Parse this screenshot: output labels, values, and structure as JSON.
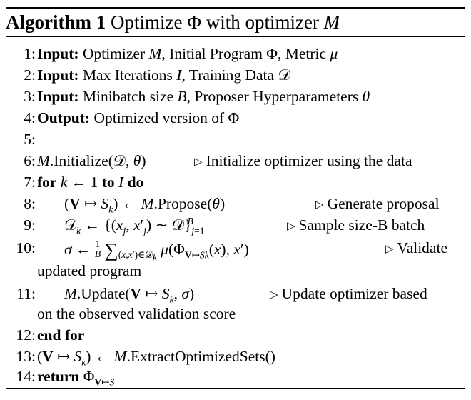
{
  "title": {
    "label": "Algorithm 1",
    "text": "Optimize Φ with optimizer",
    "var": "M"
  },
  "lines": [
    {
      "num": "1:",
      "kw": "Input:",
      "text": "Optimizer M, Initial Program Φ, Metric μ"
    },
    {
      "num": "2:",
      "kw": "Input:",
      "text": "Max Iterations I, Training Data 𝒟"
    },
    {
      "num": "3:",
      "kw": "Input:",
      "text": "Minibatch size B, Proposer Hyperparameters θ"
    },
    {
      "num": "4:",
      "kw": "Output:",
      "text": "Optimized version of Φ"
    },
    {
      "num": "5:",
      "text": ""
    },
    {
      "num": "6:",
      "text": "M.Initialize(𝒟, θ)",
      "comment": "Initialize optimizer using the data"
    },
    {
      "num": "7:",
      "text": "for k ← 1 to I do"
    },
    {
      "num": "8:",
      "text": "(V ↦ S_k) ← M.Propose(θ)",
      "comment": "Generate proposal"
    },
    {
      "num": "9:",
      "text": "𝒟_k ← {(x_j, x′_j) ∼ 𝒟}_{j=1}^{B}",
      "comment": "Sample size-B batch"
    },
    {
      "num": "10:",
      "text": "σ ← 1/B Σ_{(x,x′)∈𝒟_k} μ(Φ_{V↦S_k}(x), x′)",
      "comment": "Validate",
      "continuation": "updated program"
    },
    {
      "num": "11:",
      "text": "M.Update(V ↦ S_k, σ)",
      "comment": "Update optimizer based",
      "continuation": "on the observed validation score"
    },
    {
      "num": "12:",
      "text": "end for"
    },
    {
      "num": "13:",
      "text": "(V ↦ S_k) ← M.ExtractOptimizedSets()"
    },
    {
      "num": "14:",
      "text": "return Φ_{V↦S}"
    }
  ]
}
